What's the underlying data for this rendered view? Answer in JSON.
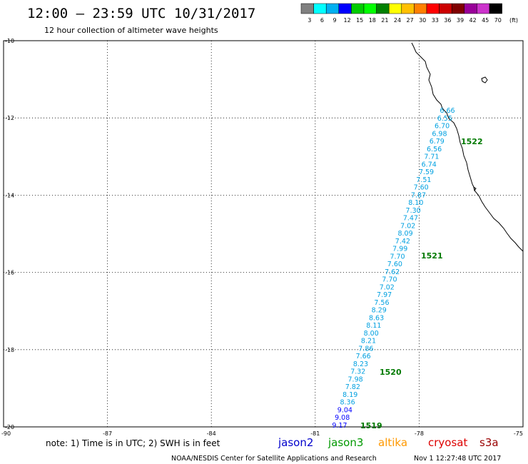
{
  "header": {
    "title": "12:00 – 23:59 UTC 10/31/2017",
    "subtitle": "12 hour collection of altimeter wave heights"
  },
  "legend": {
    "unit": "(ft)",
    "labels": [
      "3",
      "6",
      "9",
      "12",
      "15",
      "18",
      "21",
      "24",
      "27",
      "30",
      "33",
      "36",
      "39",
      "42",
      "45",
      "70"
    ],
    "colors": [
      "#808080",
      "#00ffff",
      "#00b0f0",
      "#0000ff",
      "#00cc00",
      "#00ff00",
      "#008000",
      "#ffff00",
      "#ffc000",
      "#ff8000",
      "#ff0000",
      "#cc0000",
      "#800000",
      "#990099",
      "#cc33cc",
      "#000000"
    ]
  },
  "map": {
    "lat_range": [
      -20,
      -10
    ],
    "lon_range": [
      -90,
      -75
    ],
    "y_labels": [
      "-10",
      "-12",
      "-14",
      "-16",
      "-18",
      "-20"
    ],
    "x_labels": [
      "-90",
      "-87",
      "-84",
      "-81",
      "-78",
      "-75"
    ],
    "track_color": "#00a0e0",
    "swh_values": [
      "6.66",
      "6.55",
      "6.70",
      "6.98",
      "6.79",
      "6.56",
      "7.71",
      "6.74",
      "7.59",
      "7.51",
      "7.60",
      "7.87",
      "8.10",
      "7.30",
      "7.47",
      "7.02",
      "8.09",
      "7.42",
      "7.99",
      "7.70",
      "7.60",
      "7.62",
      "7.70",
      "7.02",
      "7.97",
      "7.56",
      "8.29",
      "8.63",
      "8.11",
      "8.00",
      "8.21",
      "7.86",
      "7.66",
      "8.23",
      "7.32",
      "7.98",
      "7.82",
      "8.19",
      "8.36",
      "9.04",
      "9.08",
      "9.17"
    ],
    "pass_times": [
      "1522",
      "1521",
      "1520",
      "1519"
    ]
  },
  "footer": {
    "note": "note: 1) Time is in UTC; 2) SWH is in feet",
    "satellites": [
      {
        "name": "jason2",
        "color": "#0000cc"
      },
      {
        "name": "jason3",
        "color": "#009900"
      },
      {
        "name": "altika",
        "color": "#ff9900"
      },
      {
        "name": "cryosat",
        "color": "#dd0000"
      },
      {
        "name": "s3a",
        "color": "#990000"
      }
    ],
    "credit": "NOAA/NESDIS Center for Satellite Applications and Research",
    "timestamp": "Nov  1 12:27:48 UTC 2017"
  }
}
